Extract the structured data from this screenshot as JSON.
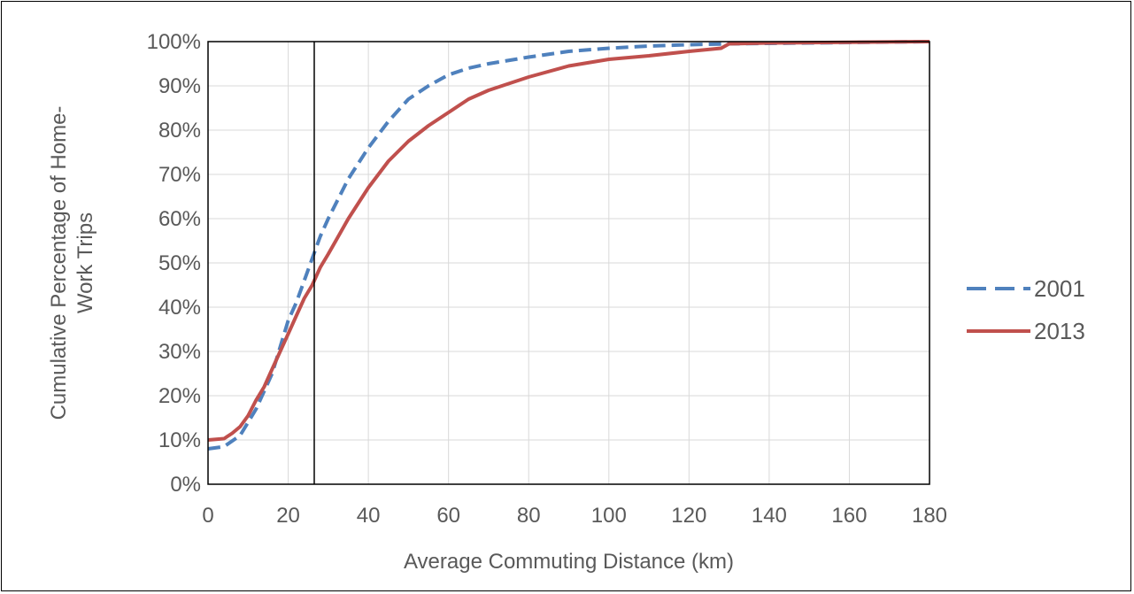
{
  "chart_data": {
    "type": "line",
    "title": "",
    "xlabel": "Average Commuting Distance (km)",
    "ylabel_lines": [
      "Cumulative Percentage of Home-",
      "Work Trips"
    ],
    "xlim": [
      0,
      180
    ],
    "ylim": [
      0,
      100
    ],
    "x_ticks": [
      0,
      20,
      40,
      60,
      80,
      100,
      120,
      140,
      160,
      180
    ],
    "y_ticks": [
      0,
      10,
      20,
      30,
      40,
      50,
      60,
      70,
      80,
      90,
      100
    ],
    "y_tick_labels": [
      "0%",
      "10%",
      "20%",
      "30%",
      "40%",
      "50%",
      "60%",
      "70%",
      "80%",
      "90%",
      "100%"
    ],
    "grid": true,
    "legend_position": "right",
    "reference_line_x": 26.5,
    "series": [
      {
        "name": "2001",
        "color": "#4F81BD",
        "style": "dashed",
        "points": [
          [
            0,
            8
          ],
          [
            4,
            8.5
          ],
          [
            8,
            11
          ],
          [
            12,
            17
          ],
          [
            16,
            25
          ],
          [
            18,
            31
          ],
          [
            20,
            37
          ],
          [
            22,
            41
          ],
          [
            24,
            46
          ],
          [
            26,
            51
          ],
          [
            28,
            56
          ],
          [
            30,
            60
          ],
          [
            35,
            69
          ],
          [
            40,
            76
          ],
          [
            45,
            82
          ],
          [
            50,
            87
          ],
          [
            55,
            90
          ],
          [
            60,
            92.5
          ],
          [
            65,
            94
          ],
          [
            70,
            95
          ],
          [
            80,
            96.5
          ],
          [
            90,
            97.8
          ],
          [
            100,
            98.5
          ],
          [
            110,
            99
          ],
          [
            120,
            99.3
          ],
          [
            130,
            99.5
          ],
          [
            140,
            99.6
          ],
          [
            150,
            99.7
          ],
          [
            160,
            99.8
          ],
          [
            170,
            99.9
          ],
          [
            180,
            100
          ]
        ]
      },
      {
        "name": "2013",
        "color": "#C0504D",
        "style": "solid",
        "points": [
          [
            0,
            10
          ],
          [
            4,
            10.3
          ],
          [
            6,
            11.5
          ],
          [
            8,
            13
          ],
          [
            10,
            15.5
          ],
          [
            12,
            19
          ],
          [
            14,
            22
          ],
          [
            16,
            26
          ],
          [
            18,
            30
          ],
          [
            20,
            34
          ],
          [
            22,
            38
          ],
          [
            24,
            42
          ],
          [
            26,
            45
          ],
          [
            28,
            49
          ],
          [
            30,
            52
          ],
          [
            35,
            60
          ],
          [
            40,
            67
          ],
          [
            45,
            73
          ],
          [
            50,
            77.5
          ],
          [
            55,
            81
          ],
          [
            60,
            84
          ],
          [
            65,
            87
          ],
          [
            70,
            89
          ],
          [
            80,
            92
          ],
          [
            90,
            94.5
          ],
          [
            100,
            96
          ],
          [
            110,
            96.8
          ],
          [
            120,
            97.8
          ],
          [
            128,
            98.5
          ],
          [
            130,
            99.5
          ],
          [
            140,
            99.7
          ],
          [
            160,
            99.85
          ],
          [
            180,
            100
          ]
        ]
      }
    ]
  }
}
